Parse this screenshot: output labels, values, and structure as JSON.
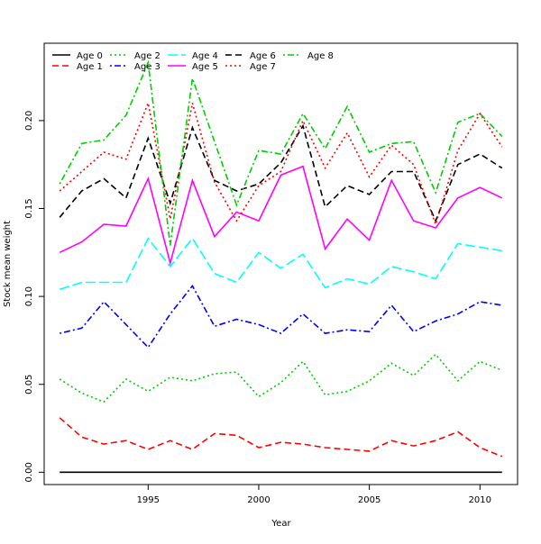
{
  "chart_data": {
    "type": "line",
    "title": "",
    "xlabel": "Year",
    "ylabel": "Stock mean weight",
    "xlim": [
      1990.3,
      2011.7
    ],
    "ylim": [
      -0.007,
      0.244
    ],
    "x_ticks": [
      1995,
      2000,
      2005,
      2010
    ],
    "y_ticks": [
      0.0,
      0.05,
      0.1,
      0.15,
      0.2
    ],
    "y_tick_labels": [
      "0.00",
      "0.05",
      "0.10",
      "0.15",
      "0.20"
    ],
    "grid": false,
    "legend_position": "top-left",
    "x": [
      1991,
      1992,
      1993,
      1994,
      1995,
      1996,
      1997,
      1998,
      1999,
      2000,
      2001,
      2002,
      2003,
      2004,
      2005,
      2006,
      2007,
      2008,
      2009,
      2010,
      2011
    ],
    "series": [
      {
        "name": "Age 0",
        "color": "#000000",
        "dash": "solid",
        "values": [
          0,
          0,
          0,
          0,
          0,
          0,
          0,
          0,
          0,
          0,
          0,
          0,
          0,
          0,
          0,
          0,
          0,
          0,
          0,
          0,
          0
        ]
      },
      {
        "name": "Age 1",
        "color": "#ff0000",
        "dash": "dashed",
        "values": [
          0.031,
          0.02,
          0.016,
          0.018,
          0.013,
          0.018,
          0.013,
          0.022,
          0.021,
          0.014,
          0.017,
          0.016,
          0.014,
          0.013,
          0.012,
          0.018,
          0.015,
          0.018,
          0.023,
          0.014,
          0.009
        ]
      },
      {
        "name": "Age 2",
        "color": "#00cd00",
        "dash": "dotted",
        "values": [
          0.053,
          0.045,
          0.04,
          0.053,
          0.046,
          0.054,
          0.052,
          0.056,
          0.057,
          0.043,
          0.051,
          0.063,
          0.044,
          0.046,
          0.052,
          0.062,
          0.055,
          0.067,
          0.052,
          0.063,
          0.058
        ]
      },
      {
        "name": "Age 3",
        "color": "#0000ff",
        "dash": "dotdash",
        "values": [
          0.079,
          0.082,
          0.097,
          0.084,
          0.071,
          0.09,
          0.106,
          0.083,
          0.087,
          0.084,
          0.079,
          0.09,
          0.079,
          0.081,
          0.08,
          0.095,
          0.08,
          0.086,
          0.09,
          0.097,
          0.095
        ]
      },
      {
        "name": "Age 4",
        "color": "#00ffff",
        "dash": "longdash",
        "values": [
          0.104,
          0.108,
          0.108,
          0.108,
          0.133,
          0.117,
          0.133,
          0.113,
          0.108,
          0.125,
          0.116,
          0.124,
          0.105,
          0.11,
          0.107,
          0.117,
          0.114,
          0.11,
          0.13,
          0.128,
          0.126
        ]
      },
      {
        "name": "Age 5",
        "color": "#ff00ff",
        "dash": "solid",
        "values": [
          0.125,
          0.131,
          0.141,
          0.14,
          0.167,
          0.119,
          0.166,
          0.134,
          0.148,
          0.143,
          0.169,
          0.174,
          0.127,
          0.144,
          0.132,
          0.166,
          0.143,
          0.139,
          0.156,
          0.162,
          0.156
        ]
      },
      {
        "name": "Age 6",
        "color": "#000000",
        "dash": "dashed",
        "values": [
          0.145,
          0.16,
          0.167,
          0.156,
          0.19,
          0.153,
          0.196,
          0.166,
          0.16,
          0.164,
          0.176,
          0.197,
          0.151,
          0.163,
          0.158,
          0.171,
          0.171,
          0.143,
          0.175,
          0.181,
          0.173
        ]
      },
      {
        "name": "Age 7",
        "color": "#ff0000",
        "dash": "dotted",
        "values": [
          0.16,
          0.171,
          0.182,
          0.178,
          0.21,
          0.144,
          0.21,
          0.165,
          0.143,
          0.163,
          0.171,
          0.2,
          0.173,
          0.193,
          0.168,
          0.186,
          0.175,
          0.141,
          0.183,
          0.204,
          0.185
        ]
      },
      {
        "name": "Age 8",
        "color": "#00cd00",
        "dash": "dotdash",
        "values": [
          0.164,
          0.187,
          0.189,
          0.203,
          0.233,
          0.129,
          0.224,
          0.188,
          0.152,
          0.183,
          0.181,
          0.204,
          0.184,
          0.208,
          0.182,
          0.187,
          0.188,
          0.159,
          0.199,
          0.204,
          0.191
        ]
      }
    ]
  }
}
